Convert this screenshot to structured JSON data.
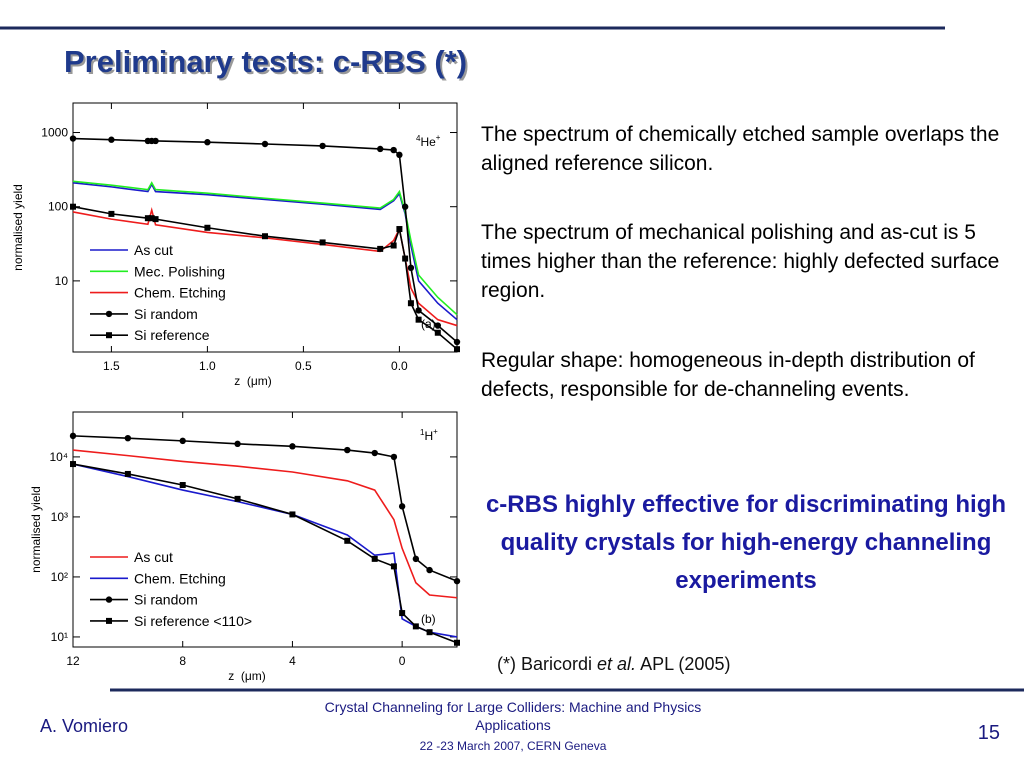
{
  "title": "Preliminary tests: c-RBS (*)",
  "chart_data": [
    {
      "type": "line",
      "xlabel": "z  (μm)",
      "ylabel": "normalised yield",
      "log_y": true,
      "annotation": {
        "mass": "4",
        "ion": "He",
        "charge": "+"
      },
      "panel": "(a)",
      "x": [
        1.7,
        1.5,
        1.31,
        1.29,
        1.27,
        1.0,
        0.7,
        0.4,
        0.1,
        0.03,
        0.0,
        -0.03,
        -0.06,
        -0.1,
        -0.2,
        -0.3
      ],
      "xlim": [
        1.7,
        -0.3
      ],
      "xticks": [
        {
          "value": 1.5,
          "label": "1.5"
        },
        {
          "value": 1.0,
          "label": "1.0"
        },
        {
          "value": 0.5,
          "label": "0.5"
        },
        {
          "value": 0.0,
          "label": "0.0"
        }
      ],
      "ylim": [
        1.1,
        2500
      ],
      "yticks": [
        1000,
        100,
        10
      ],
      "series": [
        {
          "name": "As cut",
          "color": "#1a1acc",
          "marker": "none",
          "values": [
            210,
            185,
            160,
            200,
            160,
            145,
            125,
            108,
            92,
            120,
            150,
            80,
            30,
            10,
            5,
            3
          ]
        },
        {
          "name": "Mec. Polishing",
          "color": "#22ee22",
          "marker": "none",
          "values": [
            220,
            195,
            170,
            210,
            170,
            152,
            130,
            112,
            96,
            125,
            160,
            85,
            35,
            12,
            6,
            3.5
          ]
        },
        {
          "name": "Chem. Etching",
          "color": "#ee1c1c",
          "marker": "none",
          "values": [
            85,
            68,
            58,
            90,
            57,
            45,
            38,
            31,
            25,
            35,
            50,
            20,
            8,
            5,
            3,
            2.5
          ]
        },
        {
          "name": "Si random",
          "color": "#000000",
          "marker": "circle",
          "values": [
            830,
            800,
            770,
            770,
            770,
            740,
            700,
            660,
            600,
            580,
            500,
            100,
            15,
            4,
            2.5,
            1.5
          ]
        },
        {
          "name": "Si reference",
          "color": "#000000",
          "marker": "square",
          "values": [
            100,
            80,
            70,
            70,
            68,
            52,
            40,
            33,
            27,
            30,
            50,
            20,
            5,
            3,
            2,
            1.2
          ]
        }
      ]
    },
    {
      "type": "line",
      "xlabel": "z  (μm)",
      "ylabel": "normalised yield",
      "log_y": true,
      "annotation": {
        "mass": "1",
        "ion": "H",
        "charge": "+"
      },
      "panel": "(b)",
      "x": [
        12,
        10,
        8,
        6,
        4,
        2,
        1,
        0.3,
        0,
        -0.5,
        -1,
        -2
      ],
      "xlim": [
        12,
        -2
      ],
      "xticks": [
        12,
        8,
        4,
        0
      ],
      "ylim": [
        6.8,
        56000
      ],
      "yticks": [
        {
          "value": 10000,
          "label": "10⁴"
        },
        {
          "value": 1000,
          "label": "10³"
        },
        {
          "value": 100,
          "label": "10²"
        },
        {
          "value": 10,
          "label": "10¹"
        }
      ],
      "series": [
        {
          "name": "As cut",
          "color": "#ee1c1c",
          "marker": "none",
          "values": [
            13000,
            10500,
            8400,
            7000,
            5600,
            4000,
            2800,
            900,
            300,
            80,
            50,
            45
          ]
        },
        {
          "name": "Chem. Etching",
          "color": "#1a1acc",
          "marker": "none",
          "values": [
            7600,
            4700,
            2800,
            1800,
            1100,
            500,
            230,
            250,
            20,
            15,
            12,
            10
          ]
        },
        {
          "name": "Si random",
          "color": "#000000",
          "marker": "circle",
          "values": [
            22400,
            20500,
            18500,
            16500,
            15000,
            13000,
            11600,
            10000,
            1500,
            200,
            130,
            85
          ]
        },
        {
          "name": "Si reference <110>",
          "color": "#000000",
          "marker": "square",
          "values": [
            7600,
            5200,
            3400,
            2000,
            1100,
            400,
            200,
            150,
            25,
            15,
            12,
            8
          ]
        }
      ]
    }
  ],
  "notes": [
    {
      "text": "The spectrum of chemically etched sample overlaps the aligned reference silicon.",
      "color": "#e01010"
    },
    {
      "text": "The spectrum of mechanical polishing and as-cut is 5 times higher than the reference: highly defected surface region.",
      "color": "#10b010"
    },
    {
      "text": "Regular shape: homogeneous in-depth distribution of defects, responsible for de-channeling events.",
      "color": "#111111"
    }
  ],
  "conclusion": "c-RBS highly effective for discriminating high quality crystals for high-energy channeling experiments",
  "reference": {
    "pre": "(*) Baricordi ",
    "italic": "et al.",
    "post": " APL (2005)"
  },
  "footer": {
    "author": "A. Vomiero",
    "line1": "Crystal Channeling for Large Colliders: Machine and Physics Applications",
    "line2": "22 -23  March 2007, CERN Geneva",
    "page": "15"
  }
}
